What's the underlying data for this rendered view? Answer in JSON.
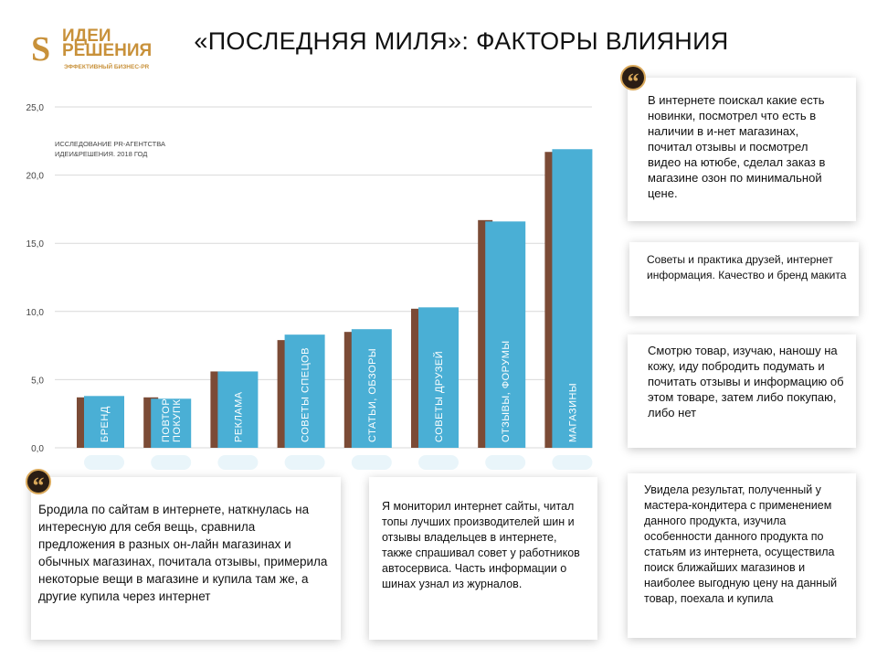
{
  "logo": {
    "line1": "ИДЕИ",
    "line2": "РЕШЕНИЯ",
    "tagline": "ЭФФЕКТИВНЫЙ БИЗНЕС-PR"
  },
  "title": "«ПОСЛЕДНЯЯ МИЛЯ»: ФАКТОРЫ ВЛИЯНИЯ",
  "source": [
    "ИССЛЕДОВАНИЕ PR-АГЕНТСТВА",
    "ИДЕИ&РЕШЕНИЯ. 2018 ГОД"
  ],
  "colors": {
    "series1": "#7b4b36",
    "series2": "#4aafd5",
    "gold": "#c8913a"
  },
  "chart_data": {
    "type": "bar",
    "categories": [
      "БРЕНД",
      "ПОВТОР ПОКУПКИ",
      "РЕКЛАМА",
      "СОВЕТЫ СПЕЦОВ",
      "СТАТЬИ, ОБЗОРЫ",
      "СОВЕТЫ ДРУЗЕЙ",
      "ОТЗЫВЫ, ФОРУМЫ",
      "МАГАЗИНЫ"
    ],
    "series": [
      {
        "name": "series1",
        "values": [
          3.7,
          3.7,
          5.6,
          7.9,
          8.5,
          10.2,
          16.7,
          21.7
        ]
      },
      {
        "name": "series2",
        "values": [
          3.8,
          3.6,
          5.6,
          8.3,
          8.7,
          10.3,
          16.6,
          21.9
        ]
      }
    ],
    "yticks": [
      "0,0",
      "5,0",
      "10,0",
      "15,0",
      "20,0",
      "25,0"
    ],
    "ylim": [
      0,
      25
    ],
    "grid": true
  },
  "quotes": [
    "В интернете поискал какие есть новинки, посмотрел что есть в наличии в и-нет магазинах, почитал отзывы и посмотрел видео на ютюбе, сделал заказ в магазине озон по минимальной цене.",
    "Советы и практика друзей, интернет информация. Качество и бренд макита",
    "Смотрю товар, изучаю, наношу на кожу,  иду побродить подумать и почитать отзывы и информацию об этом товаре, затем либо покупаю, либо нет",
    "Бродила по сайтам в интернете, наткнулась на интересную для себя вещь, сравнила предложения в разных он-лайн магазинах и обычных магазинах, почитала отзывы, примерила некоторые вещи в магазине и купила там же, а другие купила через интернет",
    "Я мониторил интернет сайты, читал топы лучших производителей шин и отзывы владельцев в интернете, также спрашивал совет у работников автосервиса. Часть информации о шинах узнал из журналов.",
    "Увидела результат, полученный у мастера-кондитера с применением данного продукта, изучила особенности данного продукта по статьям из интернета, осуществила поиск ближайших магазинов  и наиболее выгодную цену на данный товар, поехала и купила"
  ],
  "quote_glyph": "“"
}
